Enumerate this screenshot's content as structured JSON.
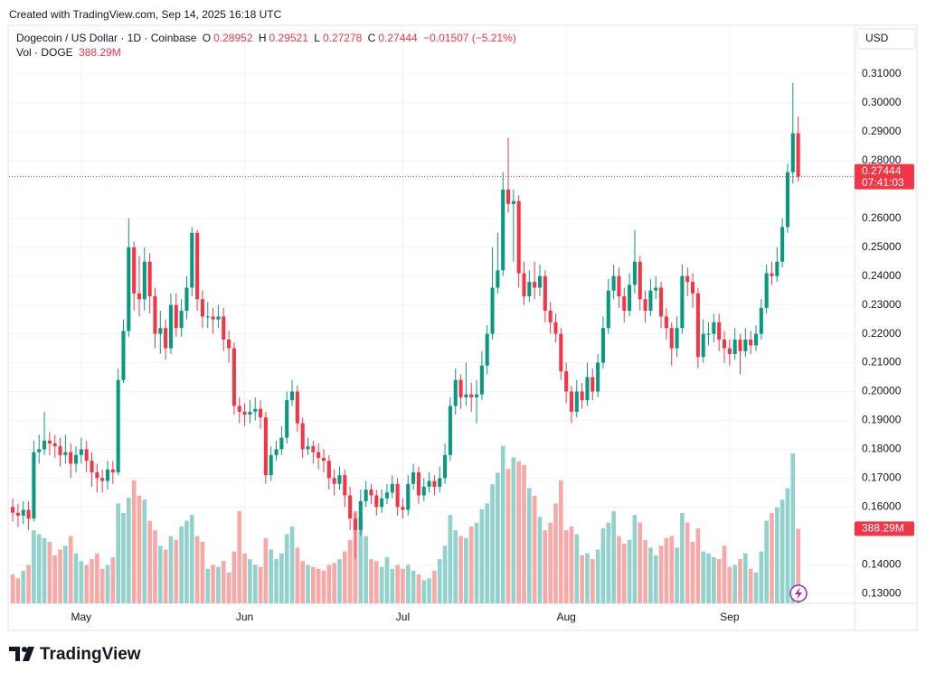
{
  "chart_data": {
    "type": "candlestick",
    "header": "Created with TradingView.com, Sep 14, 2025 16:18 UTC",
    "title": "Dogecoin / US Dollar · 1D · Coinbase",
    "legend_labels": {
      "open": "O",
      "high": "H",
      "low": "L",
      "close": "C"
    },
    "change": "−0.01507 (−5.21%)",
    "volume_title": "Vol · DOGE",
    "volume_label": "388.29M",
    "currency": "USD",
    "countdown": "07:41:03",
    "brand": "TradingView",
    "up_color": "#089981",
    "down_color": "#f23645",
    "volume_up_color": "#92d2cc",
    "volume_down_color": "#f7a9a7",
    "grid": true,
    "open": [
      0.16,
      0.158,
      0.157,
      0.159,
      0.156,
      0.179,
      0.18,
      0.183,
      0.182,
      0.181,
      0.178,
      0.179,
      0.175,
      0.178,
      0.18,
      0.176,
      0.172,
      0.17,
      0.169,
      0.173,
      0.172,
      0.204,
      0.221,
      0.25,
      0.234,
      0.232,
      0.245,
      0.233,
      0.22,
      0.222,
      0.215,
      0.23,
      0.222,
      0.228,
      0.236,
      0.255,
      0.232,
      0.226,
      0.226,
      0.225,
      0.226,
      0.218,
      0.215,
      0.195,
      0.193,
      0.192,
      0.193,
      0.194,
      0.191,
      0.171,
      0.178,
      0.18,
      0.184,
      0.197,
      0.2,
      0.189,
      0.18,
      0.181,
      0.179,
      0.177,
      0.176,
      0.17,
      0.168,
      0.171,
      0.164,
      0.156,
      0.152,
      0.162,
      0.166,
      0.164,
      0.16,
      0.163,
      0.165,
      0.168,
      0.16,
      0.159,
      0.168,
      0.172,
      0.164,
      0.167,
      0.169,
      0.167,
      0.17,
      0.178,
      0.195,
      0.204,
      0.198,
      0.199,
      0.198,
      0.199,
      0.209,
      0.22,
      0.236,
      0.242,
      0.27,
      0.265,
      0.266,
      0.241,
      0.233,
      0.238,
      0.236,
      0.24,
      0.228,
      0.224,
      0.22,
      0.207,
      0.2,
      0.193,
      0.2,
      0.197,
      0.205,
      0.2,
      0.21,
      0.222,
      0.235,
      0.24,
      0.233,
      0.228,
      0.237,
      0.245,
      0.232,
      0.228,
      0.235,
      0.236,
      0.226,
      0.222,
      0.215,
      0.222,
      0.24,
      0.238,
      0.234,
      0.212,
      0.22,
      0.22,
      0.224,
      0.218,
      0.215,
      0.213,
      0.218,
      0.214,
      0.218,
      0.216,
      0.22,
      0.229,
      0.241,
      0.24,
      0.245,
      0.257,
      0.276,
      0.28952
    ],
    "high": [
      0.163,
      0.161,
      0.162,
      0.162,
      0.183,
      0.185,
      0.193,
      0.186,
      0.185,
      0.184,
      0.185,
      0.182,
      0.181,
      0.184,
      0.183,
      0.179,
      0.175,
      0.173,
      0.176,
      0.176,
      0.208,
      0.225,
      0.26,
      0.252,
      0.247,
      0.25,
      0.248,
      0.236,
      0.228,
      0.225,
      0.234,
      0.234,
      0.232,
      0.24,
      0.257,
      0.256,
      0.235,
      0.231,
      0.229,
      0.23,
      0.229,
      0.221,
      0.217,
      0.198,
      0.196,
      0.197,
      0.198,
      0.197,
      0.193,
      0.181,
      0.183,
      0.188,
      0.2,
      0.204,
      0.202,
      0.191,
      0.184,
      0.183,
      0.182,
      0.18,
      0.178,
      0.173,
      0.174,
      0.173,
      0.167,
      0.158,
      0.166,
      0.169,
      0.168,
      0.166,
      0.166,
      0.168,
      0.171,
      0.17,
      0.163,
      0.171,
      0.175,
      0.174,
      0.17,
      0.172,
      0.171,
      0.174,
      0.182,
      0.198,
      0.208,
      0.206,
      0.21,
      0.203,
      0.204,
      0.214,
      0.223,
      0.25,
      0.255,
      0.276,
      0.288,
      0.27,
      0.268,
      0.245,
      0.242,
      0.245,
      0.244,
      0.242,
      0.231,
      0.227,
      0.222,
      0.21,
      0.202,
      0.204,
      0.203,
      0.21,
      0.208,
      0.213,
      0.226,
      0.239,
      0.244,
      0.243,
      0.236,
      0.241,
      0.256,
      0.247,
      0.235,
      0.239,
      0.24,
      0.238,
      0.229,
      0.224,
      0.226,
      0.244,
      0.243,
      0.241,
      0.236,
      0.225,
      0.224,
      0.227,
      0.227,
      0.221,
      0.218,
      0.222,
      0.22,
      0.222,
      0.221,
      0.223,
      0.232,
      0.244,
      0.245,
      0.25,
      0.26,
      0.279,
      0.307,
      0.29521
    ],
    "low": [
      0.155,
      0.153,
      0.154,
      0.152,
      0.155,
      0.175,
      0.178,
      0.178,
      0.177,
      0.174,
      0.175,
      0.17,
      0.172,
      0.175,
      0.172,
      0.167,
      0.165,
      0.165,
      0.166,
      0.168,
      0.171,
      0.203,
      0.219,
      0.228,
      0.226,
      0.228,
      0.227,
      0.215,
      0.213,
      0.211,
      0.213,
      0.219,
      0.219,
      0.225,
      0.233,
      0.228,
      0.222,
      0.222,
      0.22,
      0.222,
      0.214,
      0.21,
      0.192,
      0.189,
      0.188,
      0.189,
      0.19,
      0.187,
      0.168,
      0.169,
      0.176,
      0.178,
      0.182,
      0.195,
      0.186,
      0.177,
      0.178,
      0.175,
      0.173,
      0.172,
      0.166,
      0.164,
      0.166,
      0.16,
      0.152,
      0.142,
      0.15,
      0.16,
      0.161,
      0.157,
      0.158,
      0.161,
      0.163,
      0.157,
      0.156,
      0.157,
      0.166,
      0.161,
      0.162,
      0.165,
      0.164,
      0.165,
      0.168,
      0.176,
      0.192,
      0.194,
      0.195,
      0.193,
      0.189,
      0.197,
      0.206,
      0.218,
      0.234,
      0.24,
      0.262,
      0.245,
      0.236,
      0.23,
      0.231,
      0.232,
      0.233,
      0.224,
      0.22,
      0.217,
      0.204,
      0.196,
      0.189,
      0.191,
      0.194,
      0.195,
      0.197,
      0.198,
      0.208,
      0.22,
      0.232,
      0.229,
      0.224,
      0.226,
      0.234,
      0.228,
      0.224,
      0.226,
      0.232,
      0.222,
      0.218,
      0.209,
      0.212,
      0.22,
      0.233,
      0.229,
      0.208,
      0.21,
      0.216,
      0.217,
      0.214,
      0.21,
      0.209,
      0.211,
      0.206,
      0.212,
      0.213,
      0.214,
      0.218,
      0.227,
      0.237,
      0.238,
      0.243,
      0.255,
      0.272,
      0.27278
    ],
    "close": [
      0.158,
      0.157,
      0.159,
      0.156,
      0.179,
      0.18,
      0.183,
      0.182,
      0.181,
      0.178,
      0.179,
      0.175,
      0.178,
      0.18,
      0.176,
      0.172,
      0.17,
      0.169,
      0.173,
      0.172,
      0.204,
      0.221,
      0.25,
      0.234,
      0.232,
      0.245,
      0.233,
      0.22,
      0.222,
      0.215,
      0.23,
      0.222,
      0.228,
      0.236,
      0.255,
      0.232,
      0.226,
      0.226,
      0.225,
      0.226,
      0.218,
      0.215,
      0.195,
      0.193,
      0.192,
      0.193,
      0.194,
      0.191,
      0.171,
      0.178,
      0.18,
      0.184,
      0.197,
      0.2,
      0.189,
      0.18,
      0.181,
      0.179,
      0.177,
      0.176,
      0.17,
      0.168,
      0.171,
      0.164,
      0.156,
      0.152,
      0.162,
      0.166,
      0.164,
      0.16,
      0.163,
      0.165,
      0.168,
      0.16,
      0.159,
      0.168,
      0.172,
      0.164,
      0.167,
      0.169,
      0.167,
      0.17,
      0.178,
      0.195,
      0.204,
      0.198,
      0.199,
      0.198,
      0.199,
      0.209,
      0.22,
      0.236,
      0.242,
      0.27,
      0.265,
      0.266,
      0.241,
      0.233,
      0.238,
      0.236,
      0.24,
      0.228,
      0.224,
      0.22,
      0.207,
      0.2,
      0.193,
      0.2,
      0.197,
      0.205,
      0.2,
      0.21,
      0.222,
      0.235,
      0.24,
      0.233,
      0.228,
      0.237,
      0.245,
      0.232,
      0.228,
      0.235,
      0.236,
      0.226,
      0.222,
      0.215,
      0.222,
      0.24,
      0.238,
      0.234,
      0.212,
      0.22,
      0.22,
      0.224,
      0.218,
      0.215,
      0.213,
      0.218,
      0.214,
      0.218,
      0.216,
      0.22,
      0.229,
      0.241,
      0.24,
      0.245,
      0.257,
      0.276,
      0.28952,
      0.27444
    ],
    "volume": [
      150,
      130,
      170,
      200,
      380,
      360,
      340,
      320,
      250,
      280,
      300,
      350,
      260,
      220,
      200,
      230,
      260,
      180,
      200,
      240,
      520,
      470,
      550,
      640,
      560,
      540,
      430,
      380,
      300,
      280,
      350,
      330,
      400,
      430,
      460,
      350,
      320,
      180,
      200,
      190,
      220,
      160,
      270,
      480,
      260,
      230,
      200,
      190,
      340,
      280,
      230,
      260,
      360,
      400,
      290,
      220,
      200,
      190,
      180,
      170,
      200,
      210,
      230,
      270,
      330,
      480,
      450,
      350,
      230,
      220,
      190,
      240,
      180,
      200,
      180,
      200,
      170,
      150,
      120,
      130,
      170,
      230,
      300,
      460,
      380,
      350,
      340,
      400,
      420,
      490,
      520,
      620,
      680,
      820,
      700,
      760,
      740,
      720,
      600,
      560,
      450,
      380,
      420,
      520,
      640,
      380,
      400,
      360,
      250,
      260,
      230,
      280,
      390,
      420,
      480,
      350,
      310,
      330,
      460,
      420,
      330,
      290,
      250,
      300,
      340,
      350,
      290,
      470,
      420,
      320,
      390,
      270,
      260,
      240,
      230,
      300,
      190,
      200,
      230,
      260,
      180,
      160,
      270,
      430,
      470,
      500,
      540,
      600,
      780,
      388.29
    ],
    "xlim": [
      -0.7,
      159.7
    ],
    "xticks": [
      {
        "value": 13,
        "label": "May"
      },
      {
        "value": 44,
        "label": "Jun"
      },
      {
        "value": 74,
        "label": "Jul"
      },
      {
        "value": 105,
        "label": "Aug"
      },
      {
        "value": 136,
        "label": "Sep"
      }
    ],
    "ylim": [
      0.1266,
      0.3263
    ],
    "yticks": [
      {
        "value": 0.13,
        "label": "0.13000"
      },
      {
        "value": 0.14,
        "label": "0.14000"
      },
      {
        "value": 0.16,
        "label": "0.16000"
      },
      {
        "value": 0.17,
        "label": "0.17000"
      },
      {
        "value": 0.18,
        "label": "0.18000"
      },
      {
        "value": 0.19,
        "label": "0.19000"
      },
      {
        "value": 0.2,
        "label": "0.20000"
      },
      {
        "value": 0.21,
        "label": "0.21000"
      },
      {
        "value": 0.22,
        "label": "0.22000"
      },
      {
        "value": 0.23,
        "label": "0.23000"
      },
      {
        "value": 0.24,
        "label": "0.24000"
      },
      {
        "value": 0.25,
        "label": "0.25000"
      },
      {
        "value": 0.26,
        "label": "0.26000"
      },
      {
        "value": 0.28,
        "label": "0.28000"
      },
      {
        "value": 0.29,
        "label": "0.29000"
      },
      {
        "value": 0.3,
        "label": "0.30000"
      },
      {
        "value": 0.31,
        "label": "0.31000"
      }
    ],
    "volume_ylim": [
      0,
      3000
    ]
  }
}
